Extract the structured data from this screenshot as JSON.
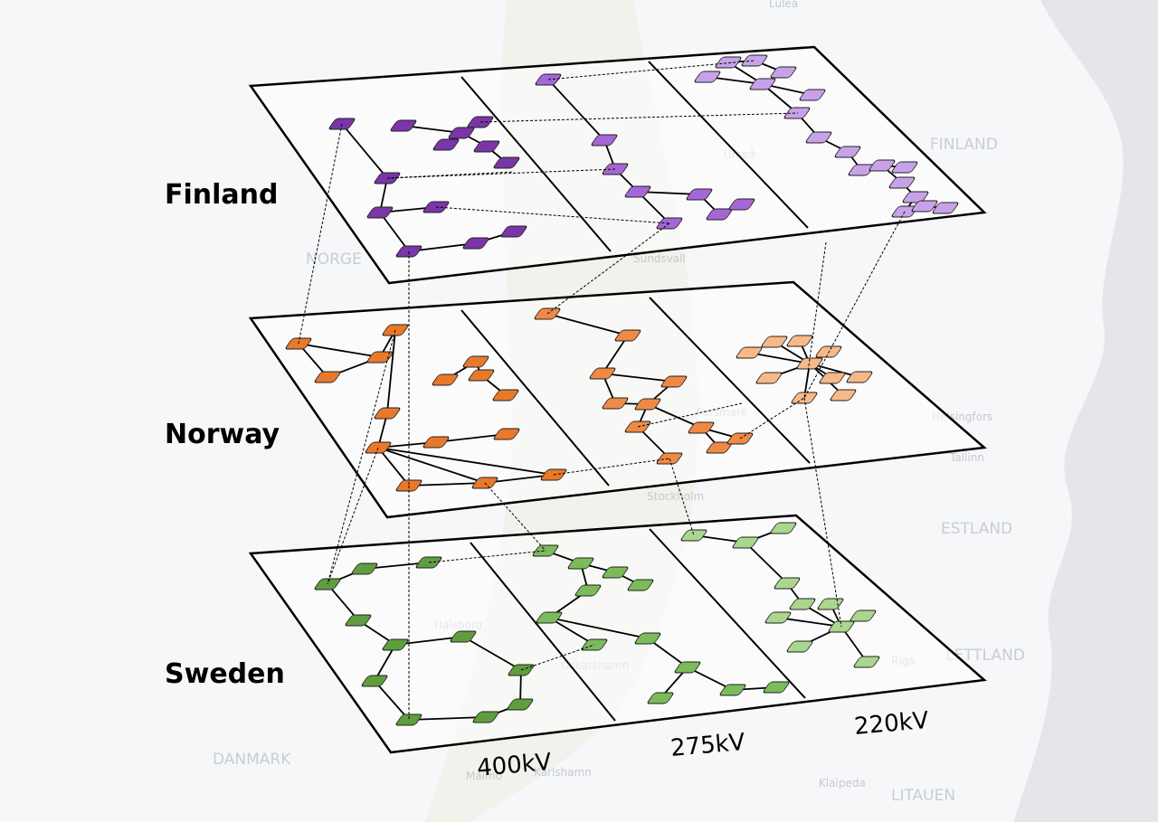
{
  "layers": [
    {
      "label": "Finland"
    },
    {
      "label": "Norway"
    },
    {
      "label": "Sweden"
    }
  ],
  "voltages": [
    "400kV",
    "275kV",
    "220kV"
  ],
  "map_labels": [
    "FINLAND",
    "NORGE",
    "ESTLAND",
    "LETTLAND",
    "LITAUEN",
    "DANMARK",
    "Sundsvall",
    "Stockholm",
    "Helsingfors",
    "Tallinn",
    "Riga",
    "Klaipeda",
    "Malmö",
    "Karlshamn",
    "Oskarshamn",
    "Forsmark",
    "Luleå",
    "Umeå",
    "Halsborg"
  ]
}
